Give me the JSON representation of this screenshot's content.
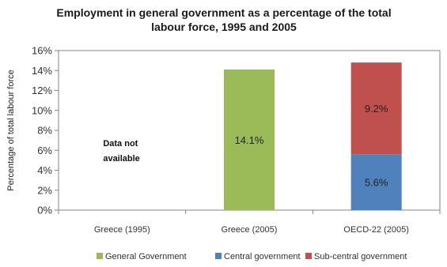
{
  "chart_data": {
    "type": "bar",
    "stacked": true,
    "title": "Employment in general government as a percentage of the total labour force, 1995 and 2005",
    "title_lines": [
      "Employment in general government as a percentage of the total",
      "labour force, 1995 and 2005"
    ],
    "xlabel": "",
    "ylabel": "Percentage of total labour force",
    "ylim": [
      0,
      16
    ],
    "yticks": [
      0,
      2,
      4,
      6,
      8,
      10,
      12,
      14,
      16
    ],
    "ytick_labels": [
      "0%",
      "2%",
      "4%",
      "6%",
      "8%",
      "10%",
      "12%",
      "14%",
      "16%"
    ],
    "categories": [
      "Greece (1995)",
      "Greece (2005)",
      "OECD-22 (2005)"
    ],
    "series": [
      {
        "name": "General Government",
        "color": "#9bbb59",
        "values": [
          null,
          14.1,
          null
        ],
        "labels": [
          "",
          "14.1%",
          ""
        ]
      },
      {
        "name": "Central government",
        "color": "#4f81bd",
        "values": [
          null,
          null,
          5.6
        ],
        "labels": [
          "",
          "",
          "5.6%"
        ]
      },
      {
        "name": "Sub-central government",
        "color": "#c0504d",
        "values": [
          null,
          null,
          9.2
        ],
        "labels": [
          "",
          "",
          "9.2%"
        ]
      }
    ],
    "annotation": {
      "category_index": 0,
      "lines": [
        "Data not",
        "available"
      ]
    },
    "grid": false,
    "legend_position": "bottom"
  }
}
